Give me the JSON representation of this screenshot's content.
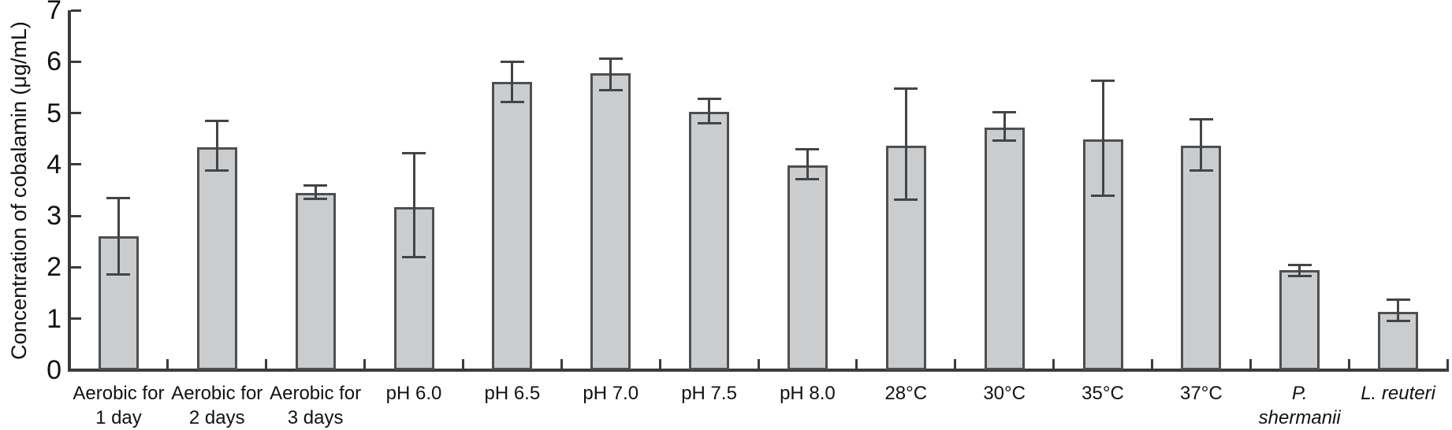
{
  "chart_data": {
    "type": "bar",
    "title": "",
    "xlabel": "",
    "ylabel": "Concentration of cobalamin (μg/mL)",
    "ylim": [
      0,
      7
    ],
    "yticks": [
      0,
      1,
      2,
      3,
      4,
      5,
      6,
      7
    ],
    "grid": false,
    "legend": null,
    "bar_fill": "#cbccce",
    "bar_border": "#4e4f51",
    "error_color": "#434446",
    "axis_color": "#3b3b3b",
    "text_color": "#111111",
    "categories": [
      {
        "label": "Aerobic for 1 day",
        "lines": [
          "Aerobic for",
          "1 day"
        ],
        "italic": false
      },
      {
        "label": "Aerobic for 2 days",
        "lines": [
          "Aerobic for",
          "2 days"
        ],
        "italic": false
      },
      {
        "label": "Aerobic for 3 days",
        "lines": [
          "Aerobic for",
          "3 days"
        ],
        "italic": false
      },
      {
        "label": "pH 6.0",
        "lines": [
          "pH 6.0"
        ],
        "italic": false
      },
      {
        "label": "pH 6.5",
        "lines": [
          "pH 6.5"
        ],
        "italic": false
      },
      {
        "label": "pH 7.0",
        "lines": [
          "pH 7.0"
        ],
        "italic": false
      },
      {
        "label": "pH 7.5",
        "lines": [
          "pH 7.5"
        ],
        "italic": false
      },
      {
        "label": "pH 8.0",
        "lines": [
          "pH 8.0"
        ],
        "italic": false
      },
      {
        "label": "28°C",
        "lines": [
          "28°C"
        ],
        "italic": false
      },
      {
        "label": "30°C",
        "lines": [
          "30°C"
        ],
        "italic": false
      },
      {
        "label": "35°C",
        "lines": [
          "35°C"
        ],
        "italic": false
      },
      {
        "label": "37°C",
        "lines": [
          "37°C"
        ],
        "italic": false
      },
      {
        "label": "P. shermanii",
        "lines": [
          "P.",
          "shermanii"
        ],
        "italic": true
      },
      {
        "label": "L. reuteri",
        "lines": [
          "L. reuteri"
        ],
        "italic": true
      }
    ],
    "values": [
      2.61,
      4.33,
      3.44,
      3.17,
      5.61,
      5.77,
      5.02,
      3.99,
      4.36,
      4.72,
      4.49,
      4.36,
      1.95,
      1.13
    ],
    "errors_plus": [
      0.75,
      0.53,
      0.16,
      1.05,
      0.4,
      0.29,
      0.27,
      0.32,
      1.12,
      0.31,
      1.15,
      0.53,
      0.11,
      0.25
    ],
    "errors_minus": [
      0.76,
      0.46,
      0.11,
      0.98,
      0.4,
      0.34,
      0.22,
      0.28,
      1.05,
      0.27,
      1.1,
      0.49,
      0.12,
      0.18
    ]
  }
}
